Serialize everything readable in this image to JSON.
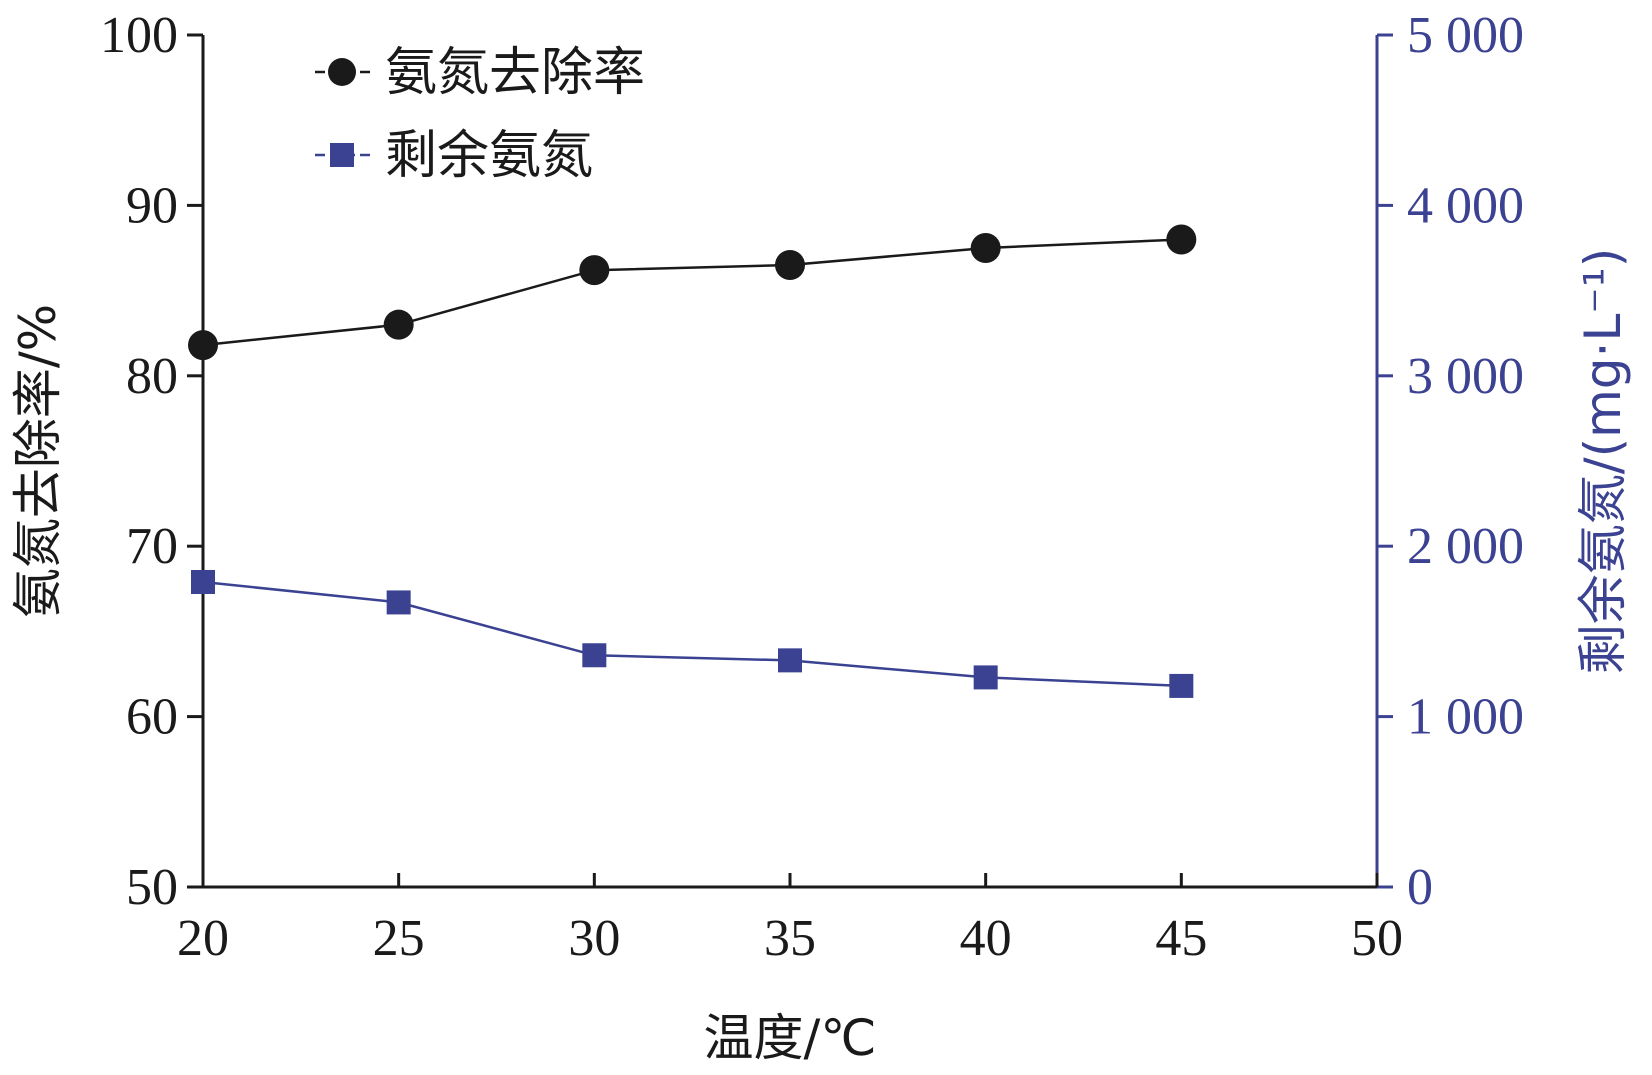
{
  "chart_data": {
    "type": "line",
    "xlabel": "温度/℃",
    "ylabel_left": "氨氮去除率/%",
    "ylabel_right": "剩余氨氮/(mg·L⁻¹)",
    "x": [
      20,
      25,
      30,
      35,
      40,
      45
    ],
    "xlim": [
      20,
      50
    ],
    "x_ticks": [
      "20",
      "25",
      "30",
      "35",
      "40",
      "45",
      "50"
    ],
    "ylim_left": [
      50,
      100
    ],
    "y_ticks_left": [
      "50",
      "60",
      "70",
      "80",
      "90",
      "100"
    ],
    "ylim_right": [
      0,
      5000
    ],
    "y_ticks_right": [
      "0",
      "1 000",
      "2 000",
      "3 000",
      "4 000",
      "5 000"
    ],
    "grid": false,
    "legend_position": "top-left",
    "series": [
      {
        "name": "氨氮去除率",
        "axis": "left",
        "marker": "circle",
        "color": "#1a1a1a",
        "values": [
          81.8,
          83.0,
          86.2,
          86.5,
          87.5,
          88.0
        ]
      },
      {
        "name": "剩余氨氮",
        "axis": "right",
        "marker": "square",
        "color": "#3b4292",
        "values": [
          1790,
          1670,
          1360,
          1330,
          1230,
          1180
        ]
      }
    ]
  }
}
